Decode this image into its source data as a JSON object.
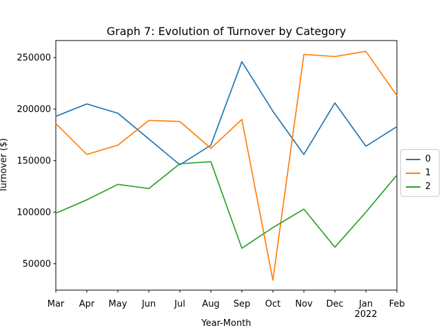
{
  "chart_data": {
    "type": "line",
    "title": "Graph 7: Evolution of Turnover by Category",
    "xlabel": "Year-Month",
    "ylabel": "Turnover ($)",
    "categories": [
      "Mar",
      "Apr",
      "May",
      "Jun",
      "Jul",
      "Aug",
      "Sep",
      "Oct",
      "Nov",
      "Dec",
      "Jan",
      "Feb"
    ],
    "year_annotation": {
      "index": 10,
      "text": "2022"
    },
    "series": [
      {
        "name": "0",
        "color": "#1f77b4",
        "values": [
          193000,
          205000,
          196000,
          171000,
          146000,
          165000,
          246000,
          198000,
          156000,
          206000,
          164000,
          183000
        ]
      },
      {
        "name": "1",
        "color": "#ff7f0e",
        "values": [
          186000,
          156000,
          165000,
          189000,
          188000,
          162000,
          190000,
          34000,
          253000,
          251000,
          256000,
          213000
        ]
      },
      {
        "name": "2",
        "color": "#2ca02c",
        "values": [
          99000,
          112000,
          127000,
          123000,
          147000,
          149000,
          65000,
          85000,
          103000,
          66000,
          100000,
          136000
        ]
      }
    ],
    "yticks": [
      50000,
      100000,
      150000,
      200000,
      250000
    ],
    "ytick_labels": [
      "50000",
      "100000",
      "150000",
      "200000",
      "250000"
    ],
    "ylim": [
      24400,
      266500
    ],
    "grid": false,
    "legend": {
      "position": "center-right-outside",
      "entries": [
        {
          "label": "0",
          "color": "#1f77b4"
        },
        {
          "label": "1",
          "color": "#ff7f0e"
        },
        {
          "label": "2",
          "color": "#2ca02c"
        }
      ]
    },
    "axis_color": "#000000"
  }
}
